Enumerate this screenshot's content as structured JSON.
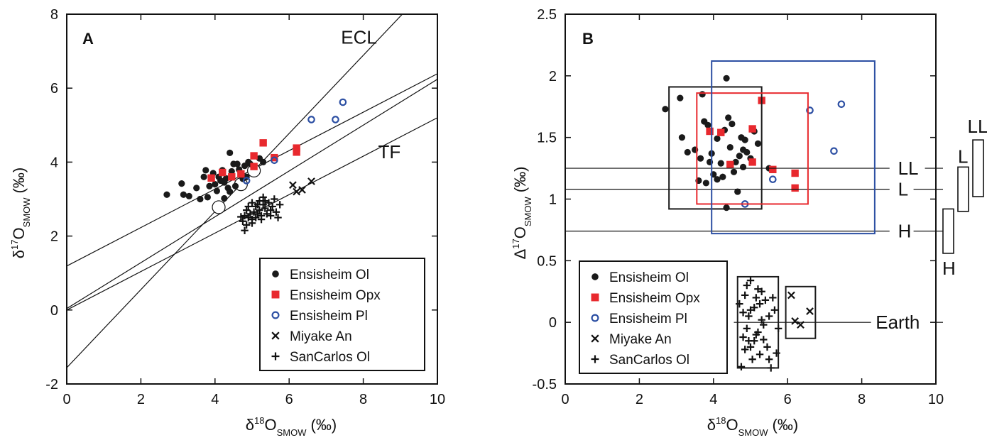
{
  "legend_entries": [
    {
      "key": "ensisheim_ol",
      "label": "Ensisheim Ol",
      "marker": "filled-circle",
      "color": "#1a1a1a"
    },
    {
      "key": "ensisheim_opx",
      "label": "Ensisheim Opx",
      "marker": "filled-square",
      "color": "#e8292e"
    },
    {
      "key": "ensisheim_pl",
      "label": "Ensisheim Pl",
      "marker": "open-circle",
      "color": "#2c4fa3"
    },
    {
      "key": "miyake_an",
      "label": "Miyake An",
      "marker": "x",
      "color": "#111111"
    },
    {
      "key": "sancarlos_ol",
      "label": "SanCarlos Ol",
      "marker": "plus",
      "color": "#111111"
    }
  ],
  "chart_data": [
    {
      "type": "scatter",
      "panel": "A",
      "xlabel": {
        "main": "δ",
        "sup": "18",
        "rest": "O",
        "sub": "SMOW",
        "unit": "(‰)"
      },
      "ylabel": {
        "main": "δ",
        "sup": "17",
        "rest": "O",
        "sub": "SMOW",
        "unit": "(‰)"
      },
      "xlim": [
        0,
        10
      ],
      "ylim": [
        -2,
        8
      ],
      "xticks": [
        0,
        2,
        4,
        6,
        8,
        10
      ],
      "yticks": [
        -2,
        0,
        2,
        4,
        6,
        8
      ],
      "legend_position": "bottom-right",
      "lines": [
        {
          "label": "ECL",
          "slope": 1.056,
          "intercept": -1.56
        },
        {
          "label": "",
          "slope": 0.62,
          "intercept": 0.04
        },
        {
          "label": "TF",
          "slope": 0.52,
          "intercept": 0.0
        },
        {
          "label": "",
          "slope": 0.52,
          "intercept": 1.19
        }
      ],
      "line_labels": [
        {
          "text": "ECL",
          "x": 7.4,
          "y": 7.2
        },
        {
          "text": "TF",
          "x": 8.4,
          "y": 4.1
        }
      ],
      "reference_points": [
        [
          4.1,
          2.78
        ],
        [
          4.7,
          3.4
        ],
        [
          5.05,
          3.77
        ]
      ],
      "series": [
        {
          "key": "ensisheim_ol",
          "points": [
            [
              2.7,
              3.12
            ],
            [
              3.1,
              3.42
            ],
            [
              3.15,
              3.12
            ],
            [
              3.3,
              3.08
            ],
            [
              3.5,
              3.3
            ],
            [
              3.6,
              3.0
            ],
            [
              3.7,
              3.6
            ],
            [
              3.75,
              3.78
            ],
            [
              3.8,
              3.05
            ],
            [
              3.85,
              3.35
            ],
            [
              3.95,
              3.7
            ],
            [
              4.0,
              3.4
            ],
            [
              4.05,
              3.22
            ],
            [
              4.1,
              3.6
            ],
            [
              4.15,
              3.5
            ],
            [
              4.2,
              3.78
            ],
            [
              4.25,
              3.45
            ],
            [
              4.3,
              3.56
            ],
            [
              4.35,
              3.3
            ],
            [
              4.4,
              4.25
            ],
            [
              4.45,
              3.75
            ],
            [
              4.5,
              3.95
            ],
            [
              4.55,
              3.35
            ],
            [
              4.6,
              3.95
            ],
            [
              4.65,
              3.8
            ],
            [
              4.7,
              3.65
            ],
            [
              4.75,
              3.55
            ],
            [
              4.8,
              3.9
            ],
            [
              4.85,
              3.6
            ],
            [
              4.9,
              4.0
            ],
            [
              4.95,
              3.95
            ],
            [
              5.2,
              4.1
            ],
            [
              5.3,
              4.0
            ],
            [
              4.4,
              3.2
            ],
            [
              4.25,
              3.02
            ]
          ]
        },
        {
          "key": "ensisheim_opx",
          "points": [
            [
              3.9,
              3.57
            ],
            [
              4.2,
              3.72
            ],
            [
              4.45,
              3.6
            ],
            [
              4.7,
              3.68
            ],
            [
              5.05,
              4.17
            ],
            [
              5.05,
              3.88
            ],
            [
              5.3,
              4.52
            ],
            [
              5.6,
              4.12
            ],
            [
              6.2,
              4.38
            ],
            [
              6.2,
              4.27
            ]
          ]
        },
        {
          "key": "ensisheim_pl",
          "points": [
            [
              4.85,
              3.5
            ],
            [
              5.6,
              4.05
            ],
            [
              6.6,
              5.15
            ],
            [
              7.25,
              5.15
            ],
            [
              7.45,
              5.62
            ]
          ]
        },
        {
          "key": "miyake_an",
          "points": [
            [
              6.1,
              3.38
            ],
            [
              6.2,
              3.2
            ],
            [
              6.35,
              3.25
            ],
            [
              6.6,
              3.48
            ]
          ]
        },
        {
          "key": "sancarlos_ol",
          "points": [
            [
              4.7,
              2.52
            ],
            [
              4.75,
              2.4
            ],
            [
              4.8,
              2.55
            ],
            [
              4.8,
              2.15
            ],
            [
              4.85,
              2.7
            ],
            [
              4.9,
              2.5
            ],
            [
              4.9,
              2.8
            ],
            [
              4.95,
              2.6
            ],
            [
              5.0,
              2.45
            ],
            [
              5.0,
              2.9
            ],
            [
              5.05,
              2.65
            ],
            [
              5.1,
              2.5
            ],
            [
              5.1,
              2.8
            ],
            [
              5.15,
              2.6
            ],
            [
              5.2,
              2.95
            ],
            [
              5.2,
              2.7
            ],
            [
              5.25,
              2.55
            ],
            [
              5.3,
              2.85
            ],
            [
              5.3,
              3.05
            ],
            [
              5.35,
              2.75
            ],
            [
              5.4,
              2.6
            ],
            [
              5.45,
              2.9
            ],
            [
              5.5,
              2.7
            ],
            [
              5.55,
              2.8
            ],
            [
              5.6,
              3.0
            ],
            [
              5.7,
              2.5
            ],
            [
              5.75,
              2.85
            ],
            [
              4.85,
              2.3
            ],
            [
              5.0,
              2.35
            ],
            [
              5.15,
              2.85
            ],
            [
              5.25,
              2.45
            ],
            [
              5.35,
              2.95
            ],
            [
              5.5,
              2.55
            ],
            [
              5.65,
              2.65
            ]
          ]
        }
      ]
    },
    {
      "type": "scatter",
      "panel": "B",
      "xlabel": {
        "main": "δ",
        "sup": "18",
        "rest": "O",
        "sub": "SMOW",
        "unit": "(‰)"
      },
      "ylabel": {
        "main": "Δ",
        "sup": "17",
        "rest": "O",
        "sub": "SMOW",
        "unit": "(‰)"
      },
      "xlim": [
        0,
        10
      ],
      "ylim": [
        -0.5,
        2.5
      ],
      "xticks": [
        0,
        2,
        4,
        6,
        8,
        10
      ],
      "yticks": [
        -0.5,
        0,
        0.5,
        1,
        1.5,
        2,
        2.5
      ],
      "legend_position": "bottom-left",
      "hlines": [
        {
          "label": "LL",
          "y": 1.25
        },
        {
          "label": "L",
          "y": 1.08
        },
        {
          "label": "H",
          "y": 0.74
        },
        {
          "label": "Earth",
          "y": 0.0
        }
      ],
      "boxes": [
        {
          "color": "#1a1a1a",
          "x0": 2.8,
          "x1": 5.3,
          "y0": 0.92,
          "y1": 1.91
        },
        {
          "color": "#e8292e",
          "x0": 3.55,
          "x1": 6.55,
          "y0": 0.96,
          "y1": 1.86
        },
        {
          "color": "#2c4fa3",
          "x0": 3.95,
          "x1": 8.35,
          "y0": 0.72,
          "y1": 2.12
        },
        {
          "color": "#1a1a1a",
          "x0": 4.65,
          "x1": 5.75,
          "y0": -0.37,
          "y1": 0.37
        },
        {
          "color": "#1a1a1a",
          "x0": 5.95,
          "x1": 6.75,
          "y0": -0.13,
          "y1": 0.29
        }
      ],
      "side_bars": [
        {
          "label": "H",
          "y0": 0.56,
          "y1": 0.92
        },
        {
          "label": "L",
          "y0": 0.9,
          "y1": 1.26
        },
        {
          "label": "LL",
          "y0": 1.02,
          "y1": 1.48
        }
      ],
      "series": [
        {
          "key": "ensisheim_ol",
          "points": [
            [
              2.7,
              1.73
            ],
            [
              3.1,
              1.82
            ],
            [
              3.15,
              1.5
            ],
            [
              3.3,
              1.38
            ],
            [
              3.5,
              1.4
            ],
            [
              3.6,
              1.15
            ],
            [
              3.65,
              1.33
            ],
            [
              3.7,
              1.85
            ],
            [
              3.75,
              1.63
            ],
            [
              3.8,
              1.13
            ],
            [
              3.85,
              1.6
            ],
            [
              3.9,
              1.3
            ],
            [
              3.95,
              1.37
            ],
            [
              4.0,
              1.2
            ],
            [
              4.1,
              1.49
            ],
            [
              4.2,
              1.29
            ],
            [
              4.25,
              1.18
            ],
            [
              4.3,
              1.56
            ],
            [
              4.35,
              1.98
            ],
            [
              4.4,
              1.66
            ],
            [
              4.45,
              1.42
            ],
            [
              4.5,
              1.61
            ],
            [
              4.55,
              1.22
            ],
            [
              4.6,
              1.3
            ],
            [
              4.65,
              1.06
            ],
            [
              4.7,
              1.35
            ],
            [
              4.75,
              1.5
            ],
            [
              4.8,
              1.4
            ],
            [
              4.85,
              1.48
            ],
            [
              4.9,
              1.38
            ],
            [
              5.0,
              1.33
            ],
            [
              5.1,
              1.55
            ],
            [
              5.2,
              1.45
            ],
            [
              5.5,
              1.25
            ],
            [
              4.35,
              0.93
            ],
            [
              4.1,
              1.16
            ],
            [
              4.8,
              1.26
            ]
          ]
        },
        {
          "key": "ensisheim_opx",
          "points": [
            [
              3.9,
              1.55
            ],
            [
              4.2,
              1.54
            ],
            [
              4.45,
              1.28
            ],
            [
              5.05,
              1.57
            ],
            [
              5.05,
              1.3
            ],
            [
              5.3,
              1.8
            ],
            [
              5.6,
              1.24
            ],
            [
              6.2,
              1.21
            ],
            [
              6.2,
              1.09
            ]
          ]
        },
        {
          "key": "ensisheim_pl",
          "points": [
            [
              4.85,
              0.96
            ],
            [
              5.6,
              1.16
            ],
            [
              6.6,
              1.72
            ],
            [
              7.25,
              1.39
            ],
            [
              7.45,
              1.77
            ]
          ]
        },
        {
          "key": "miyake_an",
          "points": [
            [
              6.1,
              0.22
            ],
            [
              6.2,
              0.01
            ],
            [
              6.35,
              -0.02
            ],
            [
              6.6,
              0.09
            ]
          ]
        },
        {
          "key": "sancarlos_ol",
          "points": [
            [
              4.7,
              0.15
            ],
            [
              4.75,
              -0.36
            ],
            [
              4.8,
              0.08
            ],
            [
              4.8,
              -0.12
            ],
            [
              4.85,
              0.22
            ],
            [
              4.9,
              -0.05
            ],
            [
              4.9,
              0.3
            ],
            [
              4.95,
              0.05
            ],
            [
              5.0,
              -0.2
            ],
            [
              5.0,
              0.34
            ],
            [
              5.05,
              -0.3
            ],
            [
              5.1,
              0.12
            ],
            [
              5.1,
              -0.15
            ],
            [
              5.15,
              0.2
            ],
            [
              5.2,
              -0.08
            ],
            [
              5.2,
              0.27
            ],
            [
              5.25,
              -0.26
            ],
            [
              5.3,
              0.02
            ],
            [
              5.3,
              0.25
            ],
            [
              5.35,
              -0.14
            ],
            [
              5.4,
              0.18
            ],
            [
              5.45,
              -0.2
            ],
            [
              5.5,
              0.05
            ],
            [
              5.55,
              -0.37
            ],
            [
              5.6,
              0.2
            ],
            [
              5.7,
              -0.25
            ],
            [
              5.75,
              -0.05
            ],
            [
              4.85,
              -0.22
            ],
            [
              5.0,
              0.1
            ],
            [
              5.15,
              -0.1
            ],
            [
              5.25,
              0.15
            ],
            [
              5.35,
              -0.02
            ],
            [
              5.5,
              -0.3
            ],
            [
              5.65,
              0.1
            ],
            [
              4.95,
              -0.15
            ]
          ]
        }
      ]
    }
  ]
}
